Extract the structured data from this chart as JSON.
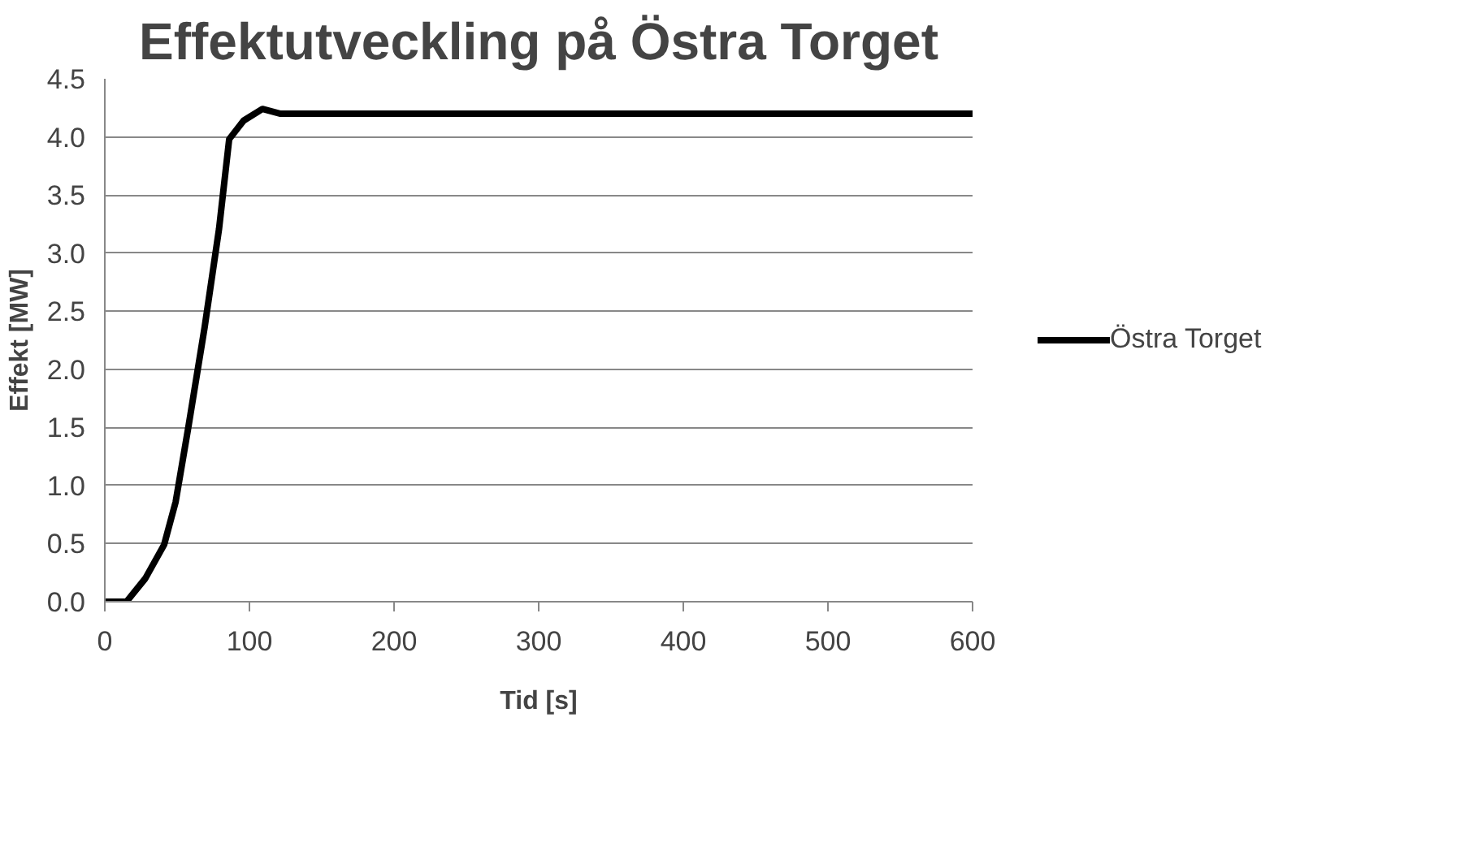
{
  "chart_data": {
    "type": "line",
    "title": "Effektutveckling på Östra Torget",
    "xlabel": "Tid [s]",
    "ylabel": "Effekt [MW]",
    "xlim": [
      0,
      600
    ],
    "xticks": [
      0,
      100,
      200,
      300,
      400,
      500,
      600
    ],
    "ylim": [
      0,
      4.5
    ],
    "yticks": [
      {
        "value": 0,
        "label": "0.0"
      },
      {
        "value": 0.5,
        "label": "0.5"
      },
      {
        "value": 1,
        "label": "1.0"
      },
      {
        "value": 1.5,
        "label": "1.5"
      },
      {
        "value": 2,
        "label": "2.0"
      },
      {
        "value": 2.5,
        "label": "2.5"
      },
      {
        "value": 3,
        "label": "3.0"
      },
      {
        "value": 3.5,
        "label": "3.5"
      },
      {
        "value": 4,
        "label": "4.0"
      },
      {
        "value": 4.5,
        "label": "4.5"
      }
    ],
    "grid": "y",
    "legend": "right",
    "marker": "none",
    "line_style": "solid",
    "series": [
      {
        "name": "Östra Torget",
        "color": "#000000",
        "x": [
          0,
          15,
          28,
          41,
          49,
          58,
          69,
          79,
          86,
          96,
          109,
          121,
          600
        ],
        "values": [
          0,
          0,
          0.2,
          0.49,
          0.86,
          1.52,
          2.36,
          3.21,
          3.98,
          4.14,
          4.24,
          4.2,
          4.2
        ]
      }
    ]
  }
}
